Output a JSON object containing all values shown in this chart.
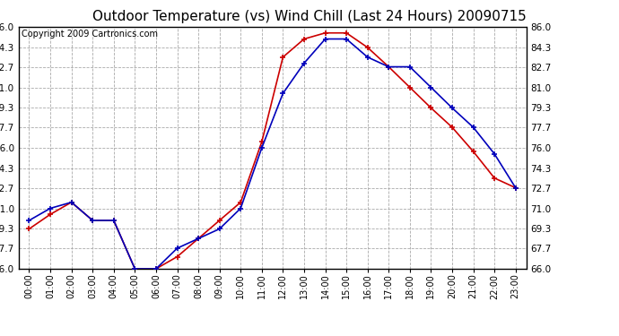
{
  "title": "Outdoor Temperature (vs) Wind Chill (Last 24 Hours) 20090715",
  "copyright": "Copyright 2009 Cartronics.com",
  "hours": [
    "00:00",
    "01:00",
    "02:00",
    "03:00",
    "04:00",
    "05:00",
    "06:00",
    "07:00",
    "08:00",
    "09:00",
    "10:00",
    "11:00",
    "12:00",
    "13:00",
    "14:00",
    "15:00",
    "16:00",
    "17:00",
    "18:00",
    "19:00",
    "20:00",
    "21:00",
    "22:00",
    "23:00"
  ],
  "temp": [
    70.0,
    71.0,
    71.5,
    70.0,
    70.0,
    66.0,
    66.0,
    67.7,
    68.5,
    69.3,
    71.0,
    76.0,
    80.5,
    83.0,
    85.0,
    85.0,
    83.5,
    82.7,
    82.7,
    81.0,
    79.3,
    77.7,
    75.5,
    72.7
  ],
  "windchill": [
    69.3,
    70.5,
    71.5,
    70.0,
    70.0,
    66.0,
    66.0,
    67.0,
    68.5,
    70.0,
    71.5,
    76.5,
    83.5,
    85.0,
    85.5,
    85.5,
    84.3,
    82.7,
    81.0,
    79.3,
    77.7,
    75.7,
    73.5,
    72.7
  ],
  "ylim": [
    66.0,
    86.0
  ],
  "yticks": [
    66.0,
    67.7,
    69.3,
    71.0,
    72.7,
    74.3,
    76.0,
    77.7,
    79.3,
    81.0,
    82.7,
    84.3,
    86.0
  ],
  "temp_color": "#0000bb",
  "windchill_color": "#cc0000",
  "bg_color": "#ffffff",
  "grid_color": "#aaaaaa",
  "title_fontsize": 11,
  "copyright_fontsize": 7
}
